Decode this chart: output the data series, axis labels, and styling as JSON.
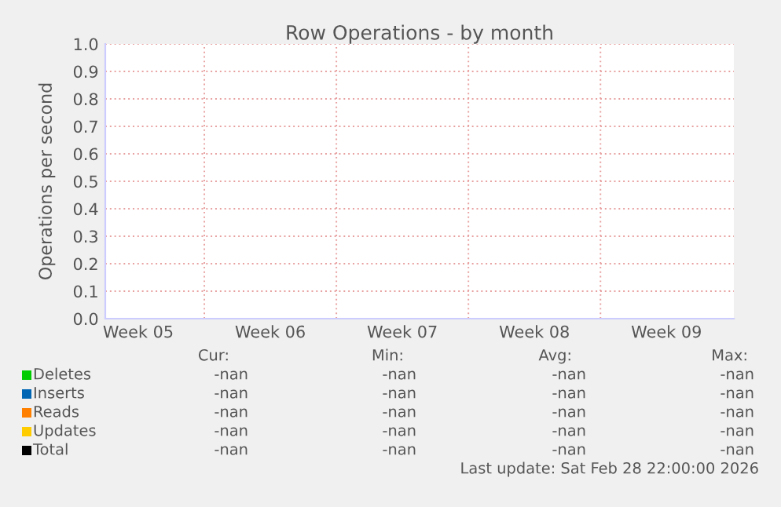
{
  "chart_data": {
    "type": "line",
    "title": "Row Operations - by month",
    "ylabel": "Operations per second",
    "categories": [
      "Week 05",
      "Week 06",
      "Week 07",
      "Week 08",
      "Week 09"
    ],
    "ylim": [
      0,
      1
    ],
    "yticks": [
      {
        "value": 0,
        "label": "0.0"
      },
      0.1,
      0.2,
      0.3,
      0.4,
      0.5,
      0.6,
      0.7,
      0.8,
      0.9,
      {
        "value": 1,
        "label": "1.0"
      }
    ],
    "grid": true,
    "legend": "bottom",
    "series": [
      {
        "name": "Deletes",
        "color": "#00cc00",
        "values": [
          null,
          null,
          null,
          null,
          null
        ]
      },
      {
        "name": "Inserts",
        "color": "#0066b3",
        "values": [
          null,
          null,
          null,
          null,
          null
        ]
      },
      {
        "name": "Reads",
        "color": "#ff8000",
        "values": [
          null,
          null,
          null,
          null,
          null
        ]
      },
      {
        "name": "Updates",
        "color": "#ffcc00",
        "values": [
          null,
          null,
          null,
          null,
          null
        ]
      },
      {
        "name": "Total",
        "color": "#000000",
        "values": [
          null,
          null,
          null,
          null,
          null
        ]
      }
    ],
    "annotations": [
      "Cur:",
      "Min:",
      "Avg:",
      "Max:",
      "-nan",
      "-nan",
      "-nan",
      "-nan",
      "-nan",
      "-nan",
      "-nan",
      "-nan",
      "-nan",
      "-nan",
      "-nan",
      "-nan",
      "-nan",
      "-nan",
      "-nan",
      "-nan",
      "-nan",
      "-nan",
      "-nan",
      "-nan",
      "Last update: Sat Feb 28 22:00:00 2026"
    ]
  }
}
